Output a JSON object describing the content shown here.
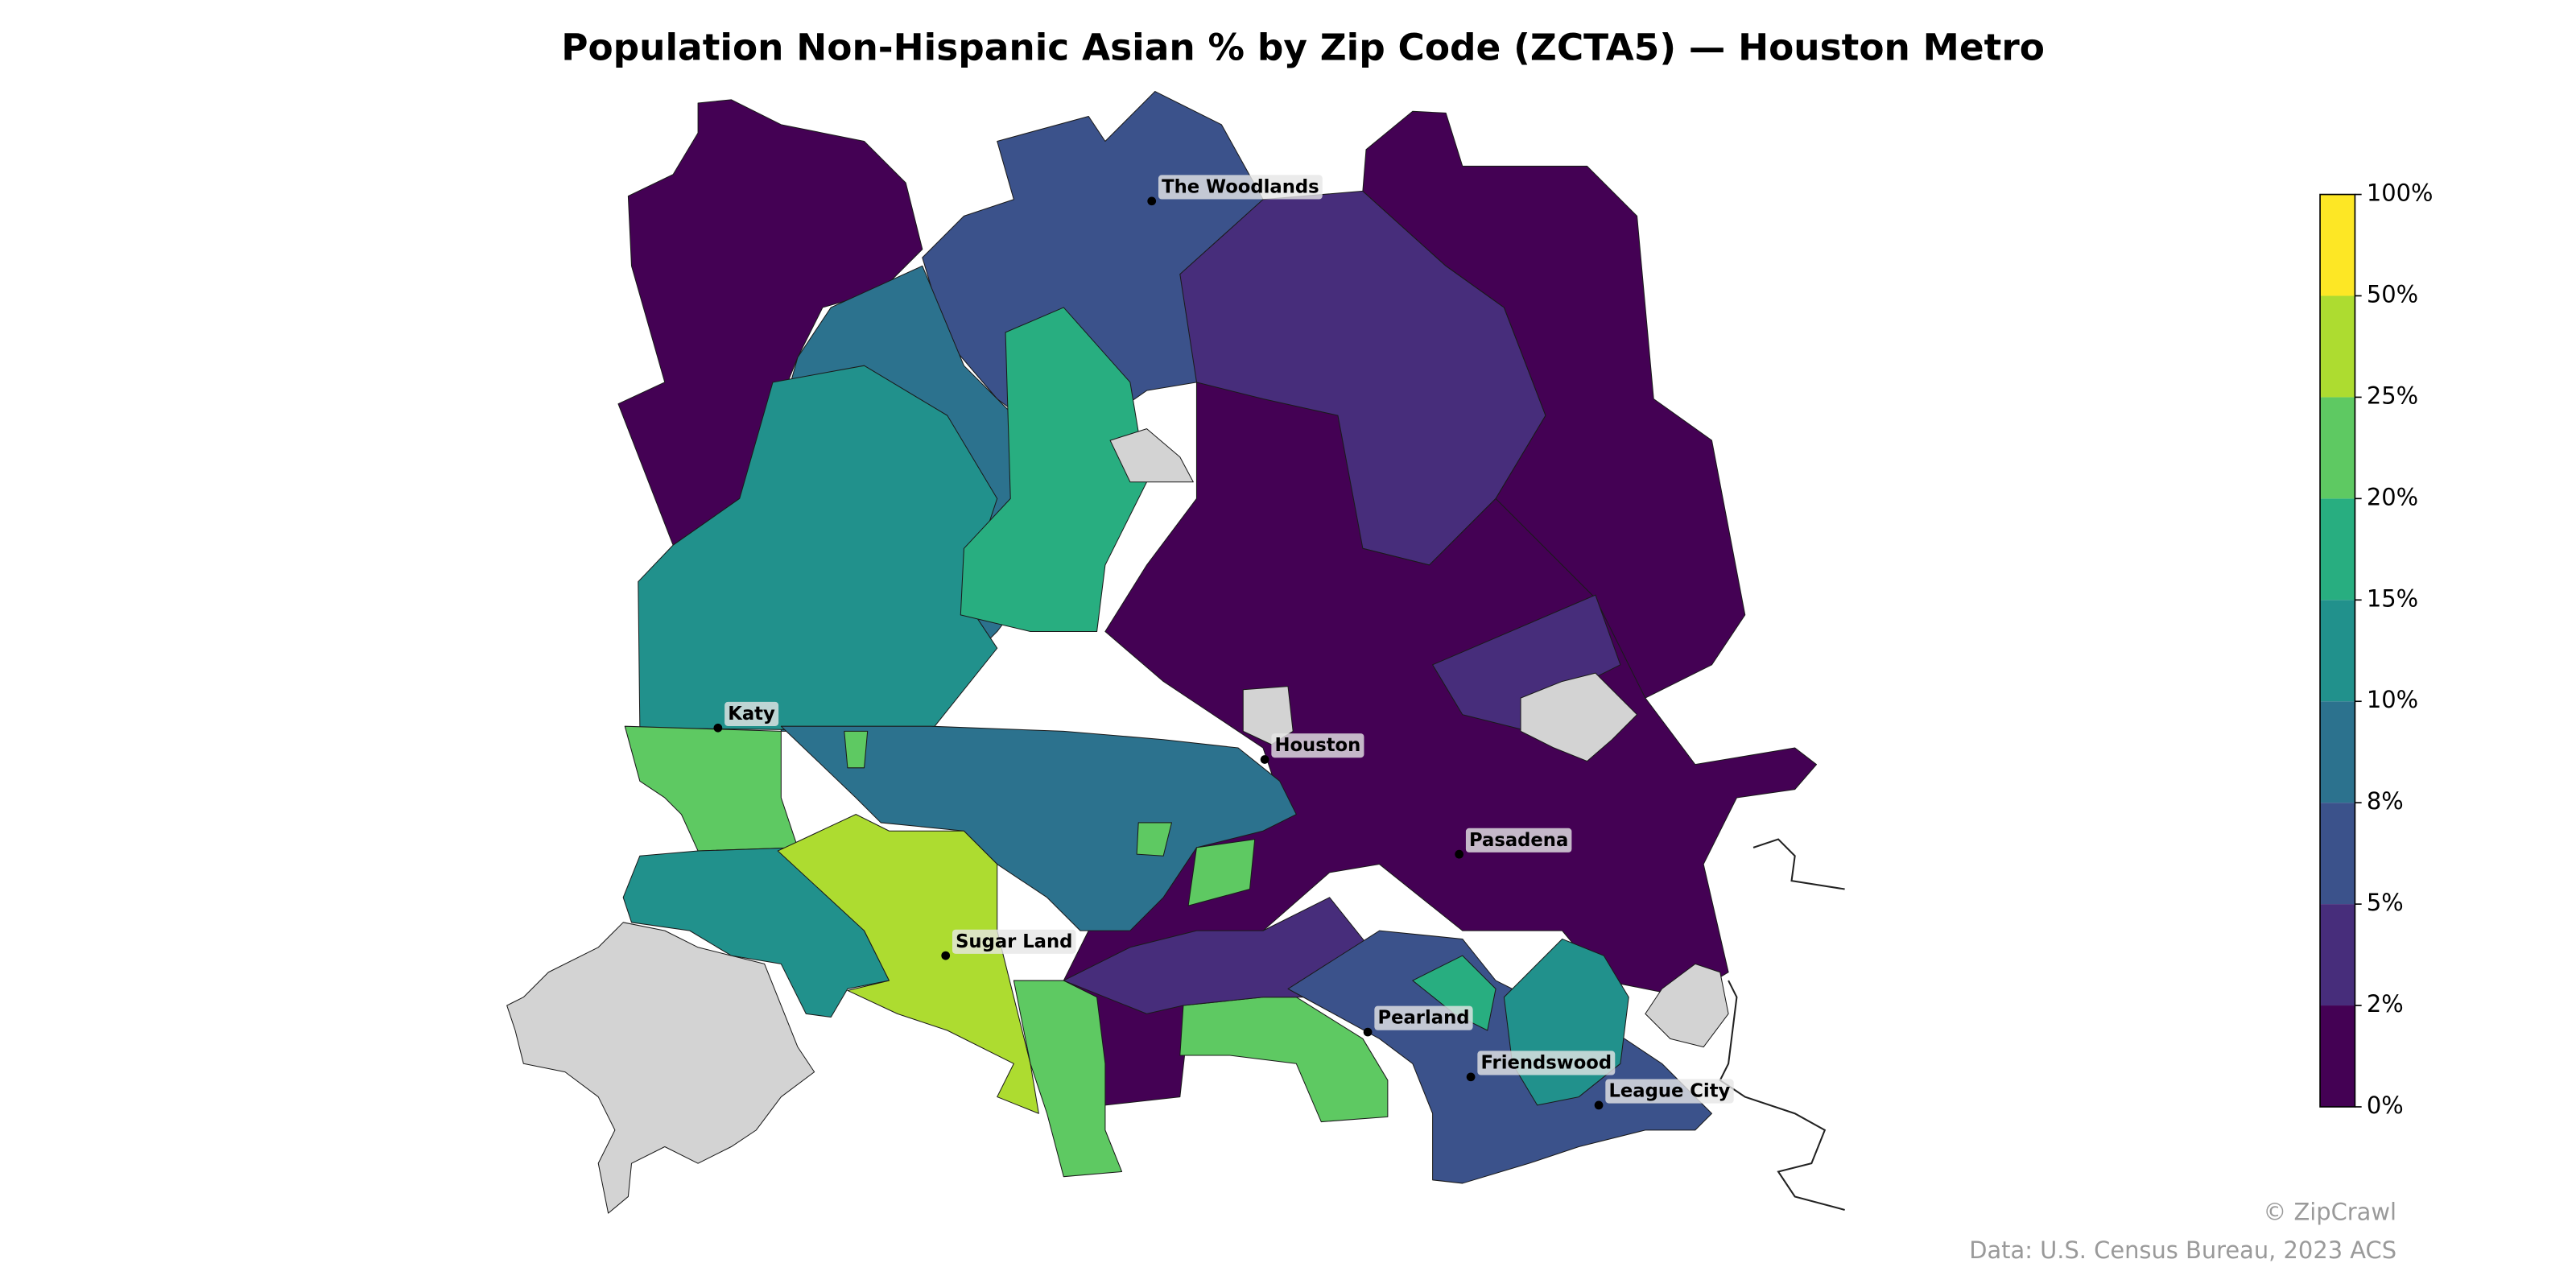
{
  "title": "Population Non-Hispanic Asian % by Zip Code (ZCTA5) — Houston Metro",
  "cities": [
    {
      "name": "The Woodlands"
    },
    {
      "name": "Katy"
    },
    {
      "name": "Houston"
    },
    {
      "name": "Pasadena"
    },
    {
      "name": "Sugar Land"
    },
    {
      "name": "Pearland"
    },
    {
      "name": "Friendswood"
    },
    {
      "name": "League City"
    }
  ],
  "colorbar": {
    "ticks": [
      {
        "value": 0,
        "label": "0%"
      },
      {
        "value": 2,
        "label": "2%"
      },
      {
        "value": 5,
        "label": "5%"
      },
      {
        "value": 8,
        "label": "8%"
      },
      {
        "value": 10,
        "label": "10%"
      },
      {
        "value": 15,
        "label": "15%"
      },
      {
        "value": 20,
        "label": "20%"
      },
      {
        "value": 25,
        "label": "25%"
      },
      {
        "value": 50,
        "label": "50%"
      },
      {
        "value": 100,
        "label": "100%"
      }
    ],
    "colors": [
      "#440154",
      "#472d7b",
      "#3b528b",
      "#2c728e",
      "#21918c",
      "#28ae80",
      "#5ec962",
      "#addc30",
      "#fde725"
    ],
    "no_data_color": "#d3d3d3"
  },
  "credit": "© ZipCrawl",
  "source": "Data: U.S. Census Bureau, 2023 ACS"
}
